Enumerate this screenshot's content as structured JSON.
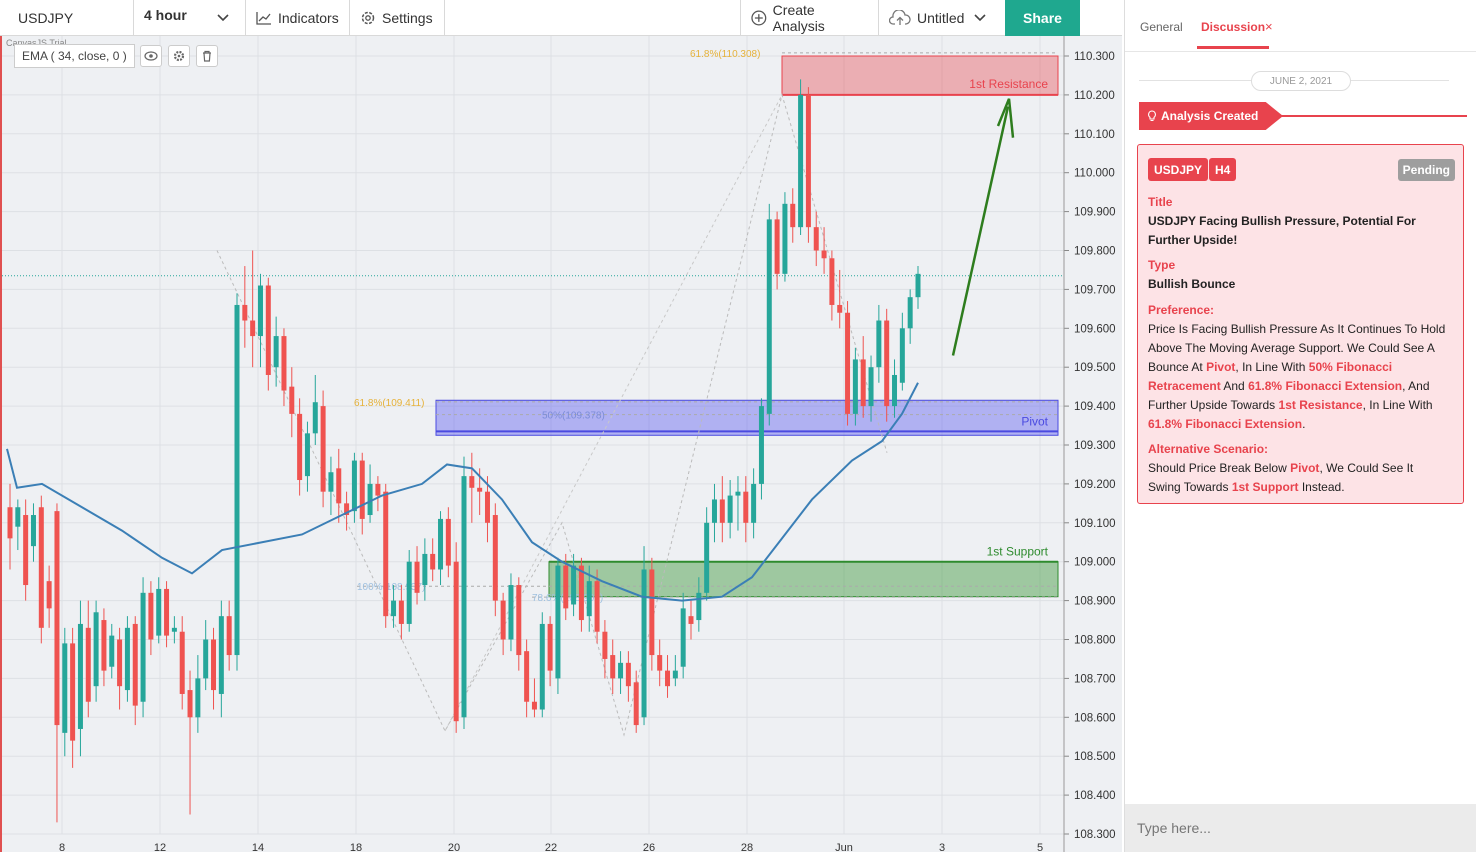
{
  "toolbar": {
    "symbol": "USDJPY",
    "timeframe": "4 hour",
    "indicators_label": "Indicators",
    "settings_label": "Settings",
    "create_label": "Create Analysis",
    "untitled_label": "Untitled",
    "share_label": "Share"
  },
  "chart": {
    "watermark": "CanvasJS Trial",
    "ema_label": "EMA ( 34, close, 0 )",
    "fib_labels": {
      "top": "61.8%(110.308)",
      "mid": "61.8%(109.411)",
      "half": "50%(109.378)",
      "hundred": "100%(108.937)",
      "seventy": "78.6%(108.909)"
    },
    "zones": {
      "resistance": "1st Resistance",
      "pivot": "Pivot",
      "support": "1st Support"
    }
  },
  "chart_data": {
    "type": "candlestick",
    "symbol": "USDJPY",
    "timeframe": "4 hour",
    "y_ticks": [
      "110.300",
      "110.200",
      "110.100",
      "110.000",
      "109.900",
      "109.800",
      "109.700",
      "109.600",
      "109.500",
      "109.400",
      "109.300",
      "109.200",
      "109.100",
      "109.000",
      "108.900",
      "108.800",
      "108.700",
      "108.600",
      "108.500",
      "108.400",
      "108.300"
    ],
    "x_ticks": [
      "8",
      "12",
      "14",
      "18",
      "20",
      "22",
      "26",
      "28",
      "Jun",
      "3",
      "5"
    ],
    "ylim": [
      108.3,
      110.3
    ],
    "indicator": "EMA ( 34, close, 0 )",
    "levels": {
      "resistance": [
        110.2,
        110.3
      ],
      "pivot": [
        109.325,
        109.415
      ],
      "support": [
        108.91,
        109.0
      ],
      "current_price_line": 109.735
    },
    "colors": {
      "up": "#26a69a",
      "down": "#ef5350",
      "ema": "#3b7fb6",
      "resistance": "#e8434d",
      "pivot": "#4a4ae0",
      "support": "#2e8b2e"
    }
  },
  "side": {
    "tab_general": "General",
    "tab_discussion": "Discussion",
    "date": "JUNE 2, 2021",
    "banner": "Analysis Created",
    "card": {
      "pair": "USDJPY",
      "tf": "H4",
      "status": "Pending",
      "title_label": "Title",
      "title": "USDJPY Facing Bullish Pressure, Potential For Further Upside!",
      "type_label": "Type",
      "type": "Bullish Bounce",
      "pref_label": "Preference:",
      "pref_1": "Price Is Facing Bullish Pressure As It Continues To Hold Above The Moving Average Support. We Could See A Bounce At",
      "pref_pivot": "Pivot",
      "pref_2": ", In Line With",
      "pref_fib50": "50% Fibonacci Retracement",
      "pref_3": "And",
      "pref_fib618": "61.8% Fibonacci Extension",
      "pref_4": ", And Further Upside Towards",
      "pref_res": "1st Resistance",
      "pref_5": ", In Line With",
      "pref_fib618b": "61.8% Fibonacci Extension",
      "pref_6": ".",
      "alt_label": "Alternative Scenario:",
      "alt_1": "Should Price Break Below",
      "alt_pivot": "Pivot",
      "alt_2": ", We Could See It Swing Towards",
      "alt_support": "1st Support",
      "alt_3": "Instead."
    },
    "chat_placeholder": "Type here..."
  }
}
